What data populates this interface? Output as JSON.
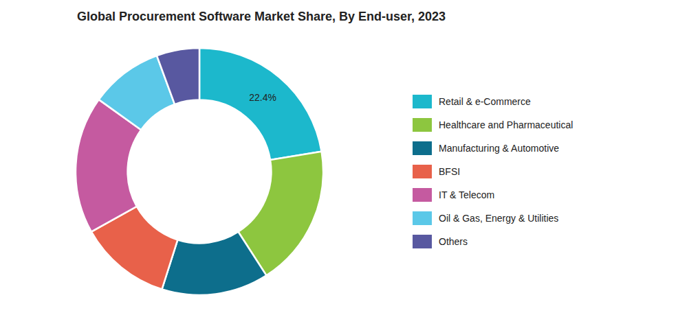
{
  "chart_data": {
    "type": "pie",
    "title": "Global Procurement Software Market Share, By End-user, 2023",
    "categories": [
      "Retail & e-Commerce",
      "Healthcare and Pharmaceutical",
      "Manufacturing & Automotive",
      "BFSI",
      "IT & Telecom",
      "Oil & Gas, Energy & Utilities",
      "Others"
    ],
    "values": [
      22.4,
      18.5,
      14.0,
      12.0,
      18.0,
      9.5,
      5.6
    ],
    "colors": [
      "#1CB8CC",
      "#8DC63F",
      "#0D6E8C",
      "#E8614A",
      "#C55AA0",
      "#5BC8E8",
      "#5858A0"
    ],
    "data_labels": true,
    "value_labels": [
      "22.4%",
      null,
      null,
      null,
      null,
      null,
      null
    ]
  }
}
